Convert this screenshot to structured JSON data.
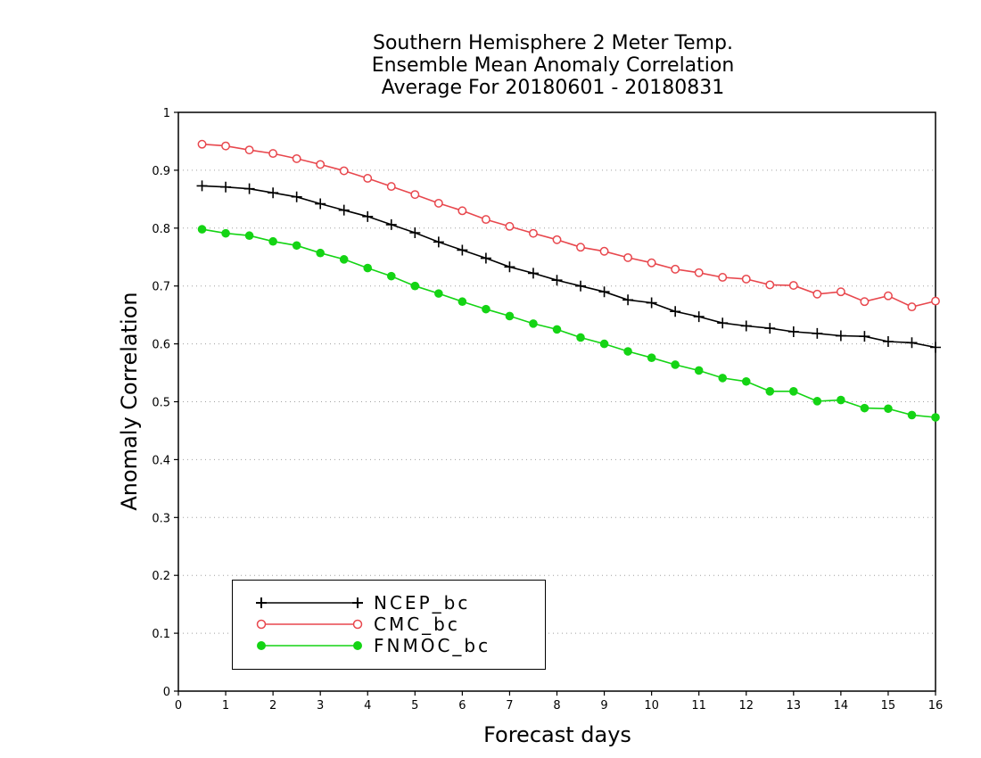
{
  "title_lines": [
    "Southern Hemisphere 2 Meter Temp.",
    "Ensemble Mean Anomaly Correlation",
    "Average For 20180601 - 20180831"
  ],
  "chart_data": {
    "type": "line",
    "title": "Southern Hemisphere 2 Meter Temp. Ensemble Mean Anomaly Correlation Average For 20180601 - 20180831",
    "xlabel": "Forecast days",
    "ylabel": "Anomaly Correlation",
    "xlim": [
      0,
      16
    ],
    "ylim": [
      0,
      1
    ],
    "x_ticks": [
      "0",
      "1",
      "2",
      "3",
      "4",
      "5",
      "6",
      "7",
      "8",
      "9",
      "10",
      "11",
      "12",
      "13",
      "14",
      "15",
      "16"
    ],
    "y_ticks": [
      "0",
      "0.1",
      "0.2",
      "0.3",
      "0.4",
      "0.5",
      "0.6",
      "0.7",
      "0.8",
      "0.9",
      "1"
    ],
    "grid": "horizontal dotted",
    "legend_position": "bottom-left",
    "x": [
      0.5,
      1,
      1.5,
      2,
      2.5,
      3,
      3.5,
      4,
      4.5,
      5,
      5.5,
      6,
      6.5,
      7,
      7.5,
      8,
      8.5,
      9,
      9.5,
      10,
      10.5,
      11,
      11.5,
      12,
      12.5,
      13,
      13.5,
      14,
      14.5,
      15,
      15.5,
      16
    ],
    "series": [
      {
        "name": "NCEP_bc",
        "color": "#000000",
        "marker": "plus",
        "values": [
          0.873,
          0.871,
          0.868,
          0.861,
          0.854,
          0.842,
          0.831,
          0.82,
          0.806,
          0.792,
          0.776,
          0.762,
          0.748,
          0.733,
          0.722,
          0.71,
          0.7,
          0.69,
          0.676,
          0.671,
          0.656,
          0.647,
          0.636,
          0.631,
          0.627,
          0.621,
          0.618,
          0.614,
          0.613,
          0.604,
          0.602,
          0.594
        ]
      },
      {
        "name": "CMC_bc",
        "color": "#e8474d",
        "marker": "open-circle",
        "values": [
          0.945,
          0.942,
          0.935,
          0.929,
          0.92,
          0.91,
          0.899,
          0.886,
          0.872,
          0.858,
          0.843,
          0.83,
          0.815,
          0.803,
          0.791,
          0.78,
          0.767,
          0.76,
          0.749,
          0.74,
          0.729,
          0.723,
          0.715,
          0.712,
          0.702,
          0.701,
          0.686,
          0.69,
          0.673,
          0.683,
          0.664,
          0.674
        ]
      },
      {
        "name": "FNMOC_bc",
        "color": "#14d414",
        "marker": "filled-circle",
        "values": [
          0.798,
          0.791,
          0.787,
          0.777,
          0.77,
          0.757,
          0.746,
          0.731,
          0.717,
          0.7,
          0.687,
          0.673,
          0.66,
          0.648,
          0.635,
          0.625,
          0.611,
          0.6,
          0.587,
          0.576,
          0.564,
          0.554,
          0.541,
          0.535,
          0.518,
          0.518,
          0.501,
          0.503,
          0.489,
          0.488,
          0.477,
          0.473
        ]
      }
    ]
  }
}
